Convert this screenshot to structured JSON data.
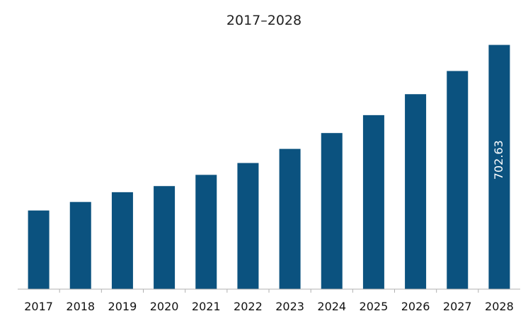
{
  "chart_data": {
    "type": "bar",
    "title": "2017–2028",
    "xlabel": "",
    "ylabel": "",
    "categories": [
      "2017",
      "2018",
      "2019",
      "2020",
      "2021",
      "2022",
      "2023",
      "2024",
      "2025",
      "2026",
      "2027",
      "2028"
    ],
    "values": [
      226.3,
      250.8,
      278.9,
      296.5,
      328.8,
      362.9,
      403.5,
      449.1,
      500.6,
      560.9,
      627.6,
      702.63
    ],
    "data_labels": [
      {
        "index": 11,
        "text": "702.63"
      }
    ],
    "ylim": [
      0,
      720
    ],
    "grid": false,
    "legend": "none",
    "colors": {
      "bar": "#0b527f",
      "axis": "#b0b0b0",
      "label_text": "#ffffff"
    }
  }
}
